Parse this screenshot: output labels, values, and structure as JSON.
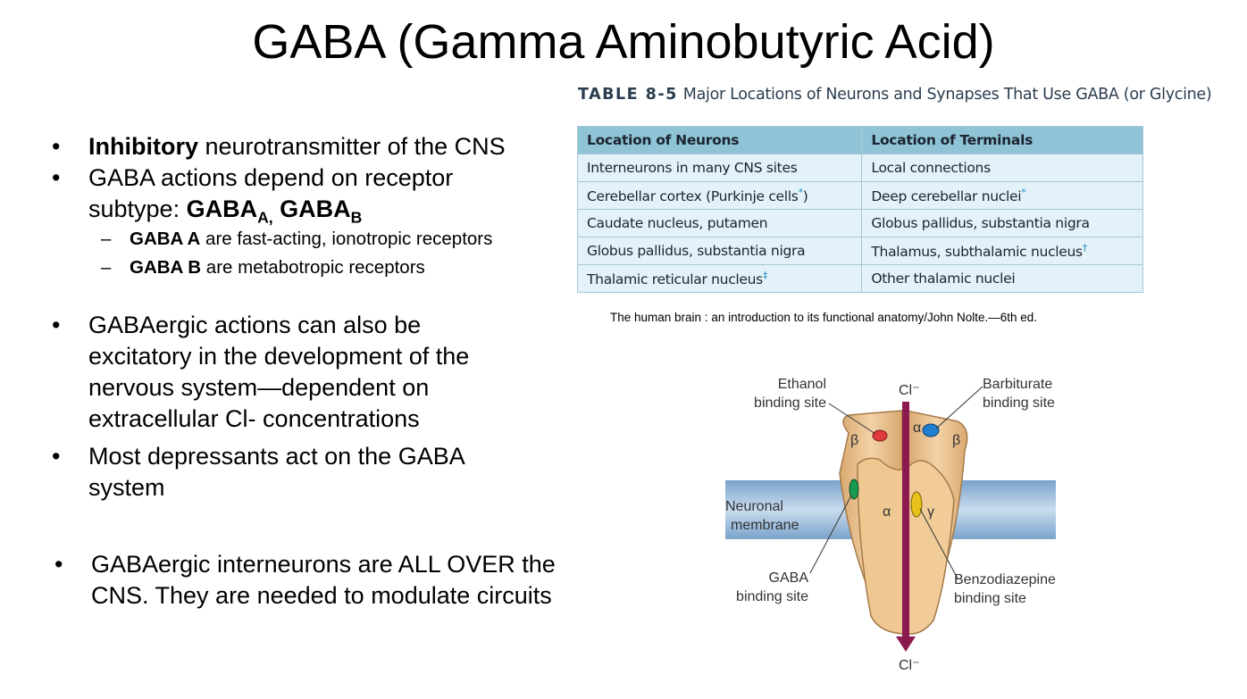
{
  "title": "GABA (Gamma Aminobutyric Acid)",
  "bullets": {
    "b1_bold": "Inhibitory",
    "b1_rest": " neurotransmitter of the CNS",
    "b2_text": "GABA actions depend on receptor subtype: ",
    "b2_gaba_a": "GABA",
    "b2_sub_a": "A,",
    "b2_gaba_b": " GABA",
    "b2_sub_b": "B",
    "sub1_bold": "GABA A",
    "sub1_rest": " are fast-acting, ionotropic receptors",
    "sub2_bold": "GABA B",
    "sub2_rest": " are metabotropic receptors",
    "b3": "GABAergic actions can also be excitatory in the development of the nervous system—dependent on extracellular Cl- concentrations",
    "b4": "Most depressants act on the GABA system",
    "b5": "GABAergic interneurons are ALL OVER the CNS. They are needed to modulate circuits"
  },
  "table": {
    "number": "TABLE 8-5",
    "caption": "Major Locations of Neurons and Synapses That Use GABA (or Glycine)",
    "headers": [
      "Location of Neurons",
      "Location of Terminals"
    ],
    "rows": [
      {
        "neurons": "Interneurons in many CNS sites",
        "neurons_mark": "",
        "terminals": "Local connections",
        "terminals_mark": ""
      },
      {
        "neurons": "Cerebellar cortex (Purkinje cells",
        "neurons_mark": "*",
        "neurons_tail": ")",
        "terminals": "Deep cerebellar nuclei",
        "terminals_mark": "*"
      },
      {
        "neurons": "Caudate nucleus, putamen",
        "neurons_mark": "",
        "terminals": "Globus pallidus, substantia nigra",
        "terminals_mark": ""
      },
      {
        "neurons": "Globus pallidus, substantia nigra",
        "neurons_mark": "",
        "terminals": "Thalamus, subthalamic nucleus",
        "terminals_mark": "†"
      },
      {
        "neurons": "Thalamic reticular nucleus",
        "neurons_mark": "‡",
        "terminals": "Other thalamic nuclei",
        "terminals_mark": ""
      }
    ]
  },
  "citation": "The human brain : an introduction to its functional anatomy/John Nolte.—6th ed.",
  "figure": {
    "ethanol_1": "Ethanol",
    "ethanol_2": "binding site",
    "barbiturate_1": "Barbiturate",
    "barbiturate_2": "binding site",
    "cl_top": "Cl⁻",
    "cl_bottom": "Cl⁻",
    "membrane_1": "Neuronal",
    "membrane_2": "membrane",
    "gaba_1": "GABA",
    "gaba_2": "binding site",
    "benzo_1": "Benzodiazepine",
    "benzo_2": "binding site",
    "beta": "β",
    "alpha": "α",
    "gamma": "γ",
    "colors": {
      "ethanol_site": "#e0393e",
      "barbiturate_site": "#1f7fd0",
      "gaba_site": "#1a9a50",
      "benzodiazepine_site": "#e8c21a",
      "channel_arrow": "#8b1a4e",
      "membrane": "#8fb3d6",
      "receptor": "#e9c08f"
    }
  }
}
